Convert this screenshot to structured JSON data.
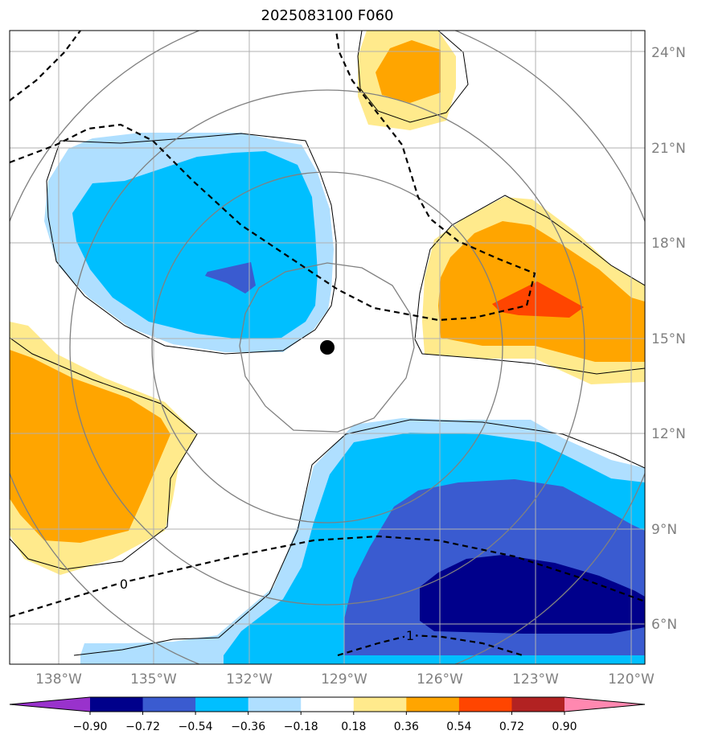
{
  "title": "2025083100 F060",
  "lat_labels": [
    "24°N",
    "21°N",
    "18°N",
    "15°N",
    "12°N",
    "9°N",
    "6°N"
  ],
  "lon_labels": [
    "138°W",
    "135°W",
    "132°W",
    "129°W",
    "126°W",
    "123°W",
    "120°W"
  ],
  "contour_labels": [
    "0",
    "1"
  ],
  "colorbar": {
    "ticks": [
      "−0.90",
      "−0.72",
      "−0.54",
      "−0.36",
      "−0.18",
      "0.18",
      "0.36",
      "0.54",
      "0.72",
      "0.90"
    ],
    "colors": [
      "#9932cc",
      "#00008b",
      "#3a5bd0",
      "#00bfff",
      "#afdfff",
      "#ffffff",
      "#ffea8c",
      "#ffa500",
      "#ff4500",
      "#b22222",
      "#ff88b0"
    ]
  },
  "colors": {
    "orange": "#ffa500",
    "light_yellow": "#ffea8c",
    "red_orange": "#ff4500",
    "deep_sky_blue": "#00bfff",
    "light_blue": "#afdfff",
    "royal_blue": "#3a5bd0",
    "navy": "#00008b",
    "grid": "#b0b0b0",
    "range_ring": "#808080",
    "storm_center": "#000000"
  }
}
